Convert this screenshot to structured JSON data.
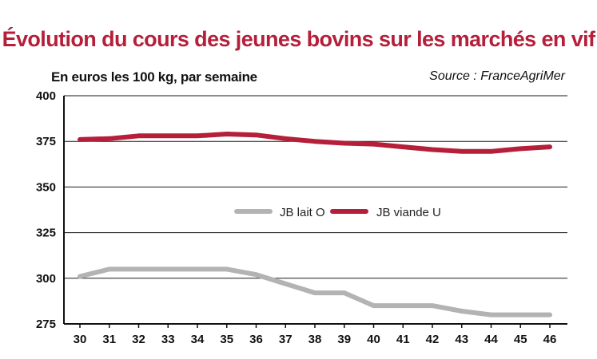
{
  "chart_data": {
    "type": "line",
    "title": "Évolution du cours des jeunes bovins sur les marchés en vif",
    "subtitle": "En euros les 100 kg, par semaine",
    "source": "Source : FranceAgriMer",
    "x": [
      "30",
      "31",
      "32",
      "33",
      "34",
      "35",
      "36",
      "37",
      "38",
      "39",
      "40",
      "41",
      "42",
      "43",
      "44",
      "45",
      "46"
    ],
    "ylim": [
      275,
      400
    ],
    "yticks": [
      275,
      300,
      325,
      350,
      375,
      400
    ],
    "grid": true,
    "legend_position": "center",
    "series": [
      {
        "name": "JB lait O",
        "color": "#b3b3b3",
        "values": [
          301,
          305,
          305,
          305,
          305,
          305,
          302,
          297,
          292,
          292,
          285,
          285,
          285,
          282,
          280,
          280,
          280
        ]
      },
      {
        "name": "JB viande U",
        "color": "#b51f3a",
        "values": [
          376,
          376.5,
          378,
          378,
          378,
          379,
          378.5,
          376.5,
          375,
          374,
          373.5,
          372,
          370.5,
          369.5,
          369.5,
          371,
          372
        ]
      }
    ]
  }
}
